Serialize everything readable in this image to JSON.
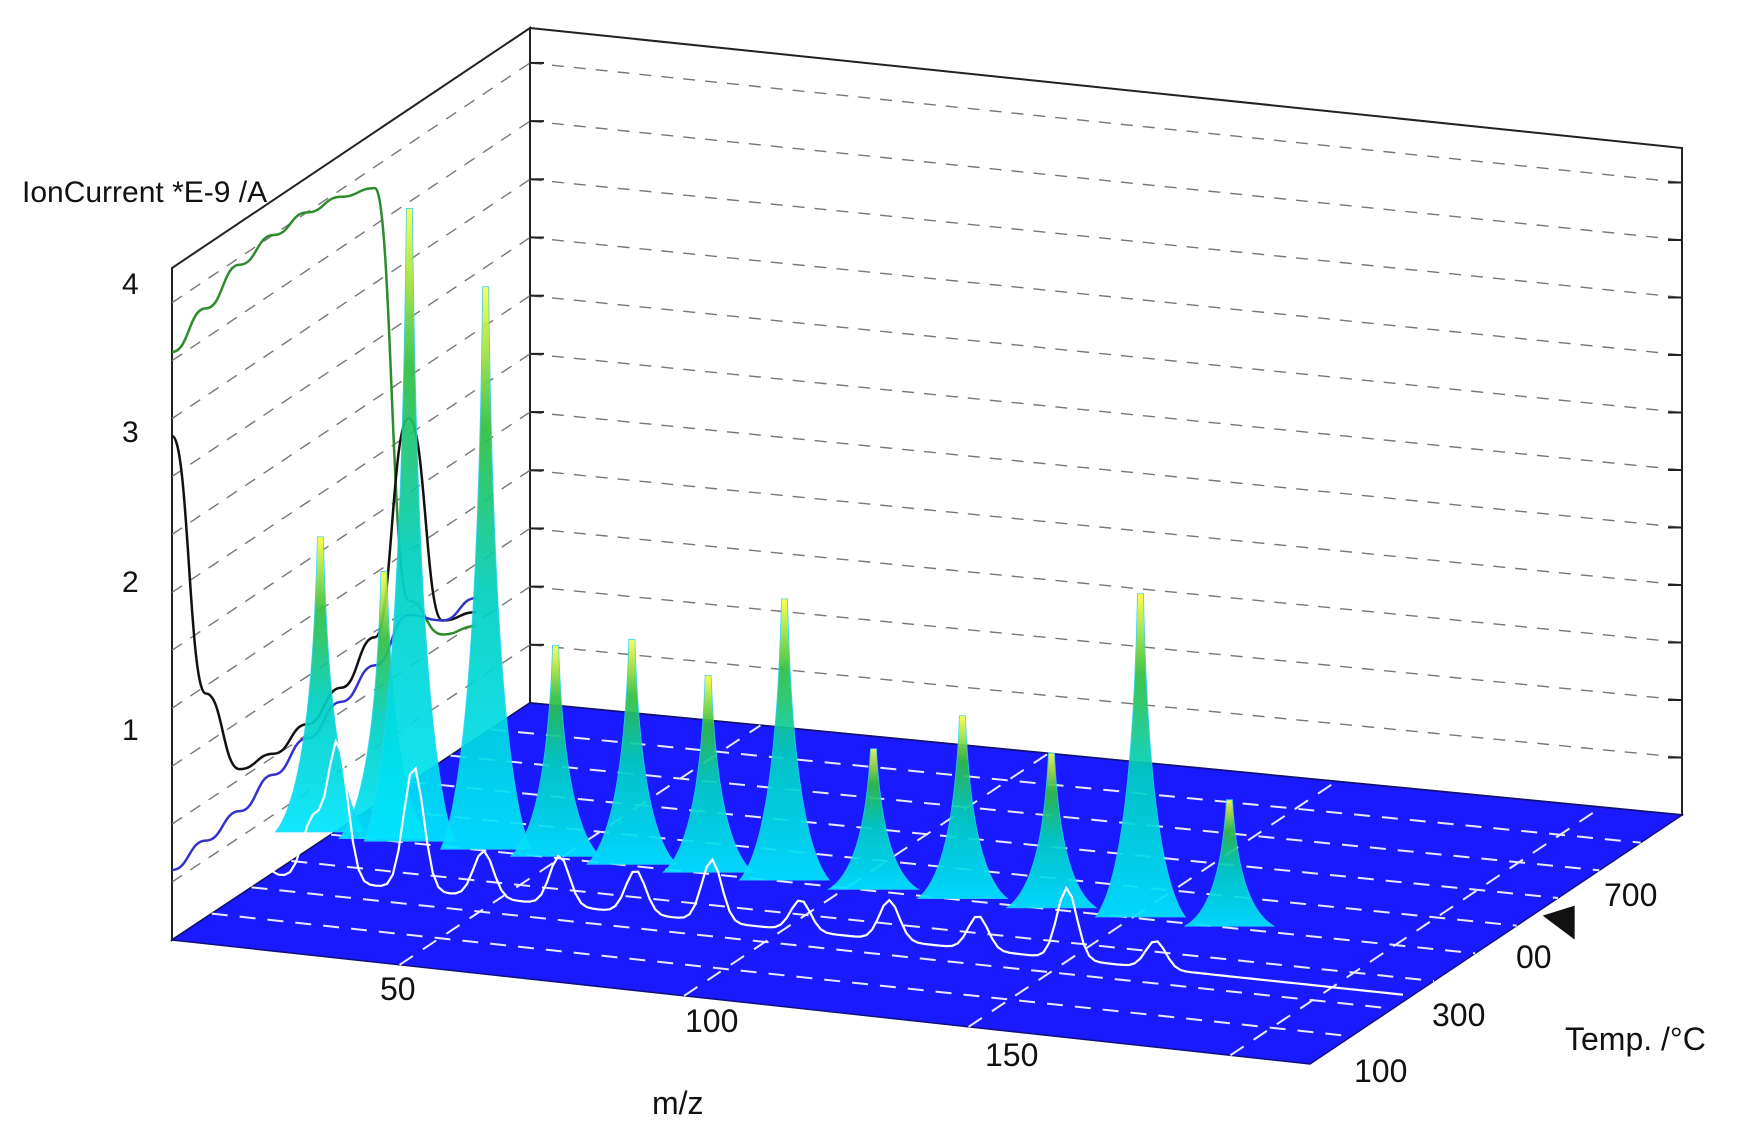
{
  "chart_data": {
    "type": "surface-3d",
    "title": "",
    "zlabel": "IonCurrent *E-9 /A",
    "xlabel": "m/z",
    "ylabel": "Temp. /°C",
    "z_ticks": [
      "1",
      "2",
      "3",
      "4"
    ],
    "x_ticks": [
      "50",
      "100",
      "150"
    ],
    "y_ticks": [
      "100",
      "300",
      "700"
    ],
    "y_ticks_partial": [
      "00"
    ],
    "xlim": [
      20,
      200
    ],
    "ylim": [
      0,
      900
    ],
    "zlim": [
      0,
      4.8
    ],
    "grid": true,
    "floor_color": "#1a1aff",
    "peaks": [
      {
        "mz": 18,
        "z": 2.1
      },
      {
        "mz": 28,
        "z": 1.9
      },
      {
        "mz": 32,
        "z": 4.5
      },
      {
        "mz": 44,
        "z": 4.0
      },
      {
        "mz": 55,
        "z": 1.5
      },
      {
        "mz": 67,
        "z": 1.6
      },
      {
        "mz": 79,
        "z": 1.4
      },
      {
        "mz": 91,
        "z": 2.0
      },
      {
        "mz": 105,
        "z": 1.0
      },
      {
        "mz": 119,
        "z": 1.3
      },
      {
        "mz": 133,
        "z": 1.1
      },
      {
        "mz": 147,
        "z": 2.3
      },
      {
        "mz": 161,
        "z": 0.9
      }
    ],
    "side_curves": [
      {
        "color": "#2e8b2e",
        "z": [
          4.2,
          4.35,
          4.5,
          4.55,
          4.55,
          4.5,
          4.4,
          1.3,
          0.9,
          0.8
        ]
      },
      {
        "color": "#111111",
        "z": [
          3.6,
          1.6,
          0.9,
          0.85,
          0.9,
          1.0,
          1.2,
          2.6,
          1.0,
          0.9
        ]
      },
      {
        "color": "#3333cc",
        "z": [
          0.5,
          0.55,
          0.6,
          0.7,
          0.8,
          0.9,
          1.0,
          1.2,
          1.0,
          1.0
        ]
      }
    ]
  }
}
